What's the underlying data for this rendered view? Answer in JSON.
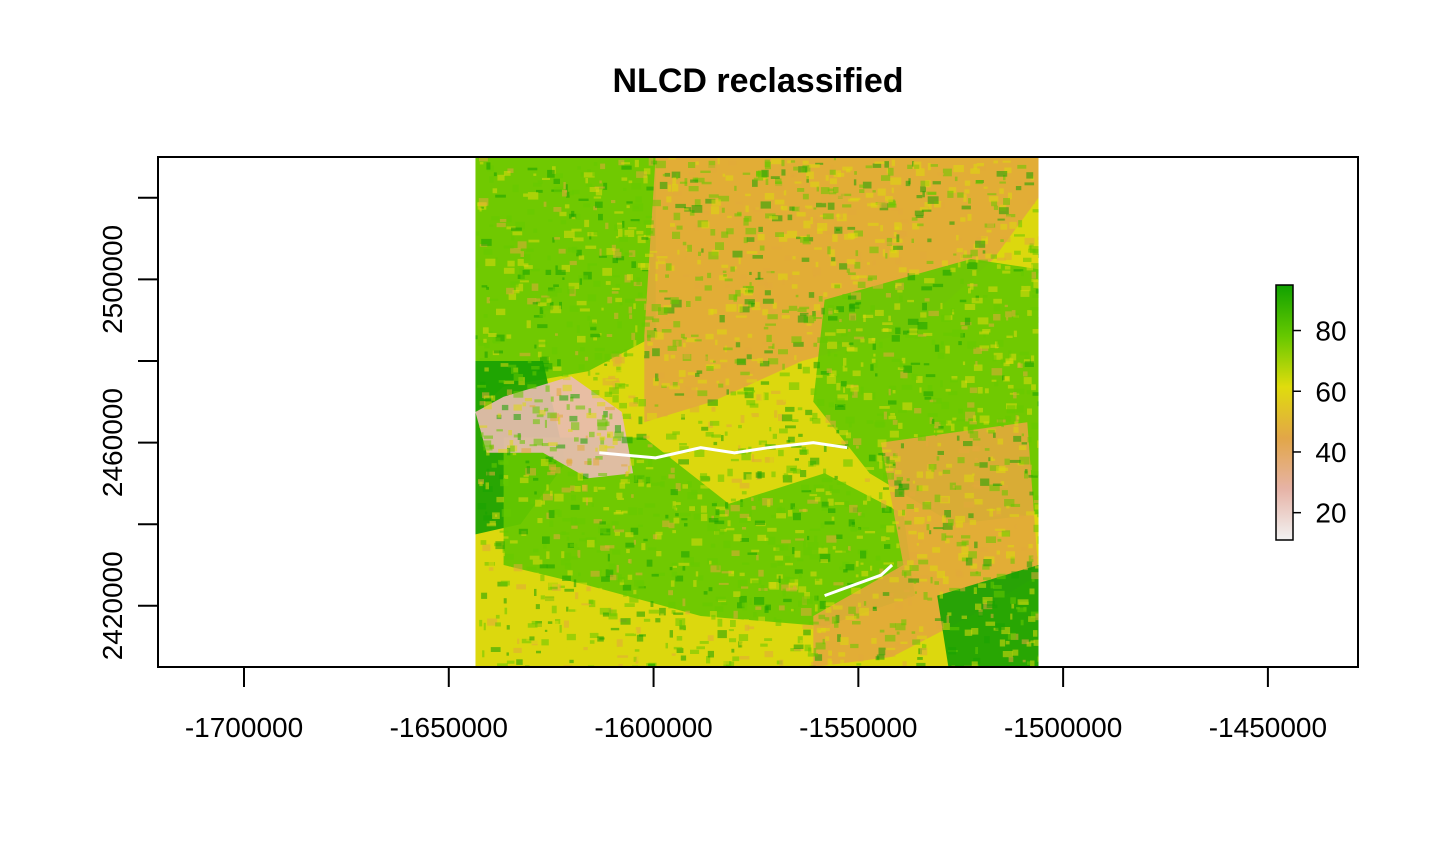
{
  "chart_data": {
    "type": "heatmap",
    "title": "NLCD reclassified",
    "xlabel": "",
    "ylabel": "",
    "xlim": [
      -1721000,
      -1428000
    ],
    "ylim": [
      2405000,
      2530000
    ],
    "raster_extent": {
      "xmin": -1643500,
      "xmax": -1506000,
      "ymin": 2405000,
      "ymax": 2530000
    },
    "x_ticks": [
      -1700000,
      -1650000,
      -1600000,
      -1550000,
      -1500000,
      -1450000
    ],
    "x_tick_labels": [
      "-1700000",
      "-1650000",
      "-1600000",
      "-1550000",
      "-1500000",
      "-1450000"
    ],
    "y_ticks": [
      2420000,
      2440000,
      2460000,
      2480000,
      2500000,
      2520000
    ],
    "y_tick_labels": [
      "2420000",
      "",
      "2460000",
      "",
      "2500000",
      ""
    ],
    "legend": {
      "placement": "right",
      "range": [
        11,
        95
      ],
      "ticks": [
        20,
        40,
        60,
        80
      ],
      "tick_labels": [
        "20",
        "40",
        "60",
        "80"
      ],
      "colors": [
        "#f2f2f2",
        "#e6b3a6",
        "#e2a648",
        "#e0dc0d",
        "#66c800",
        "#10a100"
      ]
    },
    "classes": [
      {
        "value": 11,
        "color": "#ffffff"
      },
      {
        "value": 21,
        "color": "#e8bcb0"
      },
      {
        "value": 42,
        "color": "#e2a93a"
      },
      {
        "value": 52,
        "color": "#dcd80e"
      },
      {
        "value": 71,
        "color": "#66c800"
      },
      {
        "value": 90,
        "color": "#18a202"
      }
    ],
    "grid": false
  }
}
